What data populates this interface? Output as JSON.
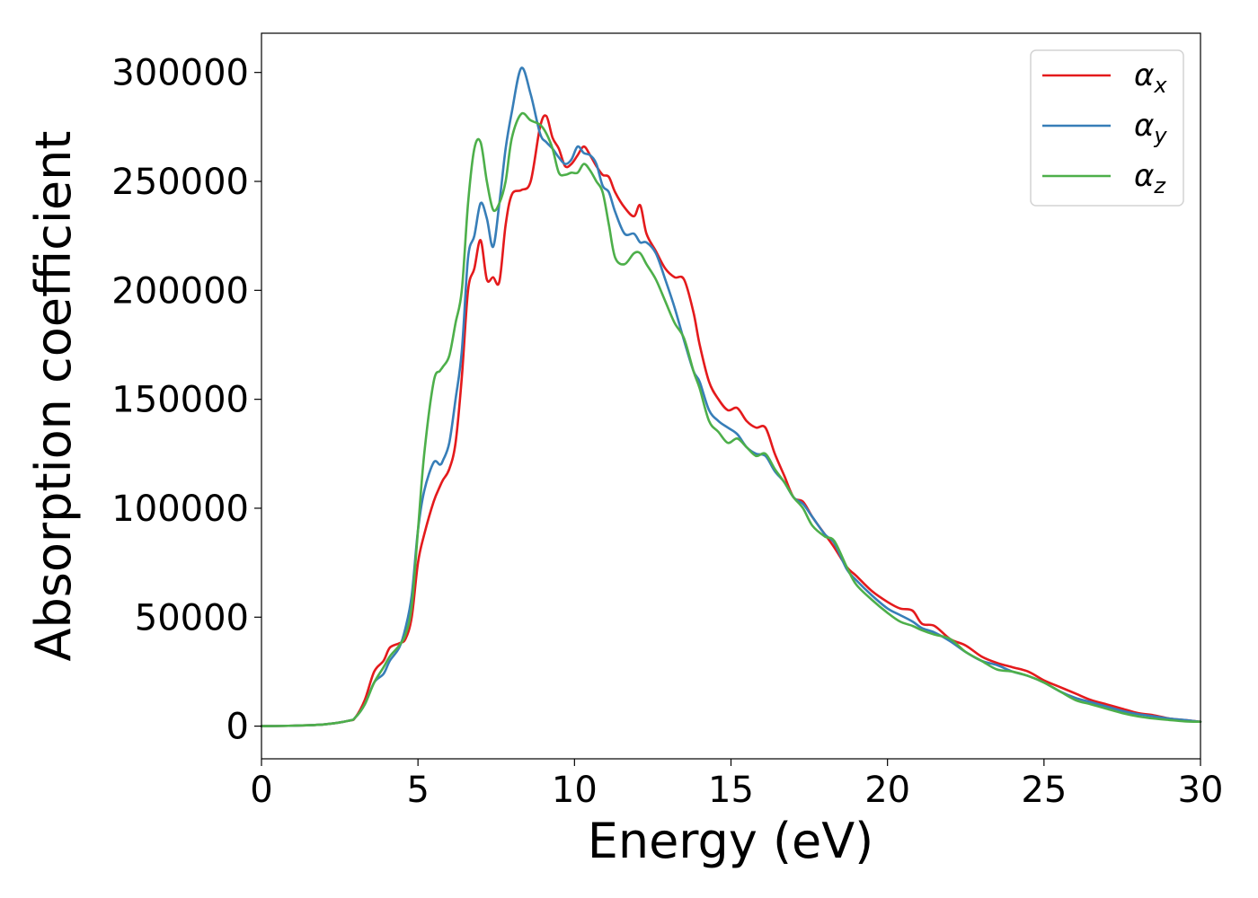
{
  "chart_data": {
    "type": "line",
    "title": "",
    "xlabel": "Energy (eV)",
    "ylabel": "Absorption coefficient",
    "xlim": [
      0,
      30
    ],
    "ylim": [
      -15000,
      318000
    ],
    "xticks": [
      0,
      5,
      10,
      15,
      20,
      25,
      30
    ],
    "xtick_labels": [
      "0",
      "5",
      "10",
      "15",
      "20",
      "25",
      "30"
    ],
    "yticks": [
      0,
      50000,
      100000,
      150000,
      200000,
      250000,
      300000
    ],
    "ytick_labels": [
      "0",
      "50000",
      "100000",
      "150000",
      "200000",
      "250000",
      "300000"
    ],
    "grid": false,
    "legend_position": "top-right",
    "series": [
      {
        "name": "α_x",
        "label_main": "α",
        "label_sub": "x",
        "color": "#e41a1c",
        "x": [
          0,
          1,
          2,
          2.8,
          3,
          3.3,
          3.6,
          3.9,
          4.1,
          4.4,
          4.6,
          4.8,
          5,
          5.2,
          5.5,
          5.7,
          5.8,
          6,
          6.2,
          6.4,
          6.6,
          6.8,
          7,
          7.2,
          7.4,
          7.6,
          7.8,
          8,
          8.3,
          8.6,
          8.9,
          9.1,
          9.3,
          9.5,
          9.7,
          9.9,
          10.1,
          10.3,
          10.5,
          10.7,
          10.9,
          11.1,
          11.3,
          11.6,
          11.9,
          12.1,
          12.3,
          12.6,
          12.9,
          13.2,
          13.5,
          13.8,
          14,
          14.3,
          14.6,
          14.9,
          15.2,
          15.5,
          15.8,
          16.1,
          16.4,
          16.7,
          17,
          17.3,
          17.6,
          18,
          18.3,
          18.7,
          19,
          19.5,
          20,
          20.4,
          20.8,
          21.1,
          21.5,
          22,
          22.5,
          23,
          23.5,
          24,
          24.5,
          25,
          25.5,
          26,
          26.5,
          27,
          27.5,
          28,
          28.5,
          29,
          29.5,
          30
        ],
        "y": [
          0,
          200,
          800,
          2500,
          4000,
          12000,
          25000,
          30000,
          36000,
          38000,
          40000,
          50000,
          75000,
          88000,
          103000,
          110000,
          113000,
          118000,
          130000,
          160000,
          200000,
          210000,
          223000,
          205000,
          206000,
          204000,
          230000,
          244000,
          246000,
          250000,
          275000,
          280000,
          270000,
          265000,
          257000,
          258000,
          262000,
          266000,
          262000,
          257000,
          253000,
          252000,
          245000,
          238000,
          234000,
          239000,
          226000,
          218000,
          210000,
          206000,
          205000,
          190000,
          175000,
          158000,
          150000,
          145000,
          146000,
          140000,
          137000,
          137000,
          125000,
          115000,
          105000,
          103000,
          96000,
          88000,
          82000,
          73000,
          69000,
          62000,
          57000,
          54000,
          53000,
          47000,
          46000,
          40000,
          37000,
          32000,
          29000,
          27000,
          25000,
          21000,
          18000,
          15000,
          12000,
          10000,
          8000,
          6000,
          5000,
          3500,
          2800,
          2000
        ]
      },
      {
        "name": "α_y",
        "label_main": "α",
        "label_sub": "y",
        "color": "#377eb8",
        "x": [
          0,
          1,
          2,
          2.8,
          3,
          3.3,
          3.6,
          3.9,
          4.1,
          4.4,
          4.6,
          4.8,
          5,
          5.2,
          5.5,
          5.7,
          5.8,
          6,
          6.2,
          6.4,
          6.6,
          6.8,
          7,
          7.2,
          7.4,
          7.6,
          7.8,
          8,
          8.3,
          8.6,
          8.9,
          9.1,
          9.3,
          9.5,
          9.7,
          9.9,
          10.1,
          10.3,
          10.5,
          10.7,
          10.9,
          11.1,
          11.3,
          11.6,
          11.9,
          12.1,
          12.3,
          12.6,
          12.9,
          13.2,
          13.5,
          13.8,
          14,
          14.3,
          14.6,
          14.9,
          15.2,
          15.5,
          15.8,
          16.1,
          16.4,
          16.7,
          17,
          17.3,
          17.6,
          18,
          18.3,
          18.7,
          19,
          19.5,
          20,
          20.4,
          20.8,
          21.1,
          21.5,
          22,
          22.5,
          23,
          23.5,
          24,
          24.5,
          25,
          25.5,
          26,
          26.5,
          27,
          27.5,
          28,
          28.5,
          29,
          29.5,
          30
        ],
        "y": [
          0,
          200,
          800,
          2500,
          4000,
          10000,
          20000,
          24000,
          30000,
          36000,
          45000,
          60000,
          90000,
          108000,
          121000,
          120000,
          122000,
          130000,
          150000,
          172000,
          215000,
          225000,
          240000,
          233000,
          220000,
          240000,
          265000,
          282000,
          302000,
          290000,
          272000,
          268000,
          265000,
          261000,
          258000,
          260000,
          266000,
          263000,
          262000,
          258000,
          248000,
          245000,
          236000,
          226000,
          226000,
          222000,
          222000,
          217000,
          205000,
          192000,
          177000,
          163000,
          158000,
          145000,
          140000,
          137000,
          134000,
          128000,
          125000,
          124000,
          117000,
          112000,
          105000,
          102000,
          96000,
          88000,
          84000,
          72000,
          67000,
          60000,
          54000,
          51000,
          48000,
          45000,
          43000,
          39000,
          34000,
          30000,
          28000,
          25000,
          23000,
          20000,
          16000,
          13000,
          11000,
          9000,
          7000,
          5500,
          4500,
          3500,
          2800,
          2000
        ]
      },
      {
        "name": "α_z",
        "label_main": "α",
        "label_sub": "z",
        "color": "#4daf4a",
        "x": [
          0,
          1,
          2,
          2.8,
          3,
          3.3,
          3.6,
          3.9,
          4.1,
          4.4,
          4.6,
          4.8,
          5,
          5.2,
          5.5,
          5.7,
          5.8,
          6,
          6.2,
          6.4,
          6.6,
          6.8,
          7,
          7.2,
          7.4,
          7.6,
          7.8,
          8,
          8.3,
          8.6,
          8.9,
          9.1,
          9.3,
          9.5,
          9.7,
          9.9,
          10.1,
          10.3,
          10.5,
          10.7,
          10.9,
          11.1,
          11.3,
          11.6,
          11.9,
          12.1,
          12.3,
          12.6,
          12.9,
          13.2,
          13.5,
          13.8,
          14,
          14.3,
          14.6,
          14.9,
          15.2,
          15.5,
          15.8,
          16.1,
          16.4,
          16.7,
          17,
          17.3,
          17.6,
          18,
          18.3,
          18.7,
          19,
          19.5,
          20,
          20.4,
          20.8,
          21.1,
          21.5,
          22,
          22.5,
          23,
          23.5,
          24,
          24.5,
          25,
          25.5,
          26,
          26.5,
          27,
          27.5,
          28,
          28.5,
          29,
          29.5,
          30
        ],
        "y": [
          0,
          200,
          800,
          2500,
          4000,
          10000,
          20000,
          27000,
          32000,
          37000,
          42000,
          55000,
          90000,
          125000,
          158000,
          163000,
          165000,
          170000,
          185000,
          200000,
          240000,
          265000,
          268000,
          250000,
          237000,
          240000,
          250000,
          270000,
          281000,
          278000,
          276000,
          272000,
          265000,
          254000,
          253000,
          254000,
          254000,
          258000,
          255000,
          250000,
          245000,
          230000,
          215000,
          212000,
          217000,
          217000,
          212000,
          205000,
          195000,
          185000,
          178000,
          163000,
          155000,
          140000,
          135000,
          130000,
          132000,
          128000,
          124000,
          125000,
          118000,
          112000,
          105000,
          100000,
          92000,
          87000,
          85000,
          73000,
          65000,
          58000,
          52000,
          48000,
          46000,
          44000,
          42000,
          40000,
          34000,
          30000,
          26000,
          25000,
          23000,
          20000,
          16000,
          12000,
          10000,
          8000,
          6000,
          4500,
          3500,
          2800,
          2200,
          2000
        ]
      }
    ]
  }
}
